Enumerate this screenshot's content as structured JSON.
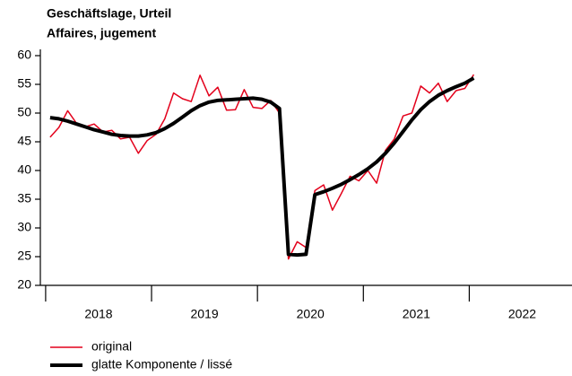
{
  "chart_data": {
    "type": "line",
    "title": "Geschäftslage, Urteil",
    "subtitle": "Affaires, jugement",
    "x": [
      2018.042,
      2018.125,
      2018.208,
      2018.292,
      2018.375,
      2018.458,
      2018.542,
      2018.625,
      2018.708,
      2018.792,
      2018.875,
      2018.958,
      2019.042,
      2019.125,
      2019.208,
      2019.292,
      2019.375,
      2019.458,
      2019.542,
      2019.625,
      2019.708,
      2019.792,
      2019.875,
      2019.958,
      2020.042,
      2020.125,
      2020.208,
      2020.292,
      2020.375,
      2020.458,
      2020.542,
      2020.625,
      2020.708,
      2020.792,
      2020.875,
      2020.958,
      2021.042,
      2021.125,
      2021.208,
      2021.292,
      2021.375,
      2021.458,
      2021.542,
      2021.625,
      2021.708,
      2021.792,
      2021.875,
      2021.958,
      2022.042
    ],
    "series": [
      {
        "name": "original",
        "color": "#e3001b",
        "width": 1.5,
        "values": [
          45.8,
          47.5,
          50.4,
          48.2,
          47.6,
          48.1,
          46.7,
          47.0,
          45.5,
          45.8,
          43.0,
          45.2,
          46.3,
          49.0,
          53.5,
          52.5,
          52.0,
          56.6,
          53.0,
          54.5,
          50.5,
          50.6,
          54.1,
          51.0,
          50.8,
          52.2,
          50.0,
          24.6,
          27.6,
          26.6,
          36.5,
          37.5,
          33.1,
          36.0,
          39.0,
          38.2,
          40.0,
          37.8,
          43.5,
          45.5,
          49.5,
          50.0,
          54.7,
          53.5,
          55.2,
          52.0,
          53.9,
          54.3,
          56.7
        ]
      },
      {
        "name": "glatte Komponente / lissé",
        "color": "#000000",
        "width": 4,
        "values": [
          49.2,
          49.0,
          48.6,
          48.1,
          47.6,
          47.1,
          46.7,
          46.3,
          46.1,
          46.0,
          46.0,
          46.2,
          46.6,
          47.3,
          48.2,
          49.3,
          50.4,
          51.3,
          51.9,
          52.2,
          52.3,
          52.4,
          52.5,
          52.6,
          52.4,
          51.9,
          50.8,
          25.4,
          25.3,
          25.4,
          35.8,
          36.3,
          36.9,
          37.6,
          38.4,
          39.3,
          40.3,
          41.5,
          43.0,
          44.8,
          46.8,
          48.8,
          50.6,
          52.0,
          53.1,
          53.9,
          54.6,
          55.2,
          56.1
        ]
      }
    ],
    "xlim": [
      2017.95,
      2022.97
    ],
    "xticks": [
      2018,
      2019,
      2020,
      2021,
      2022
    ],
    "year_labels": [
      {
        "value": 2018.5,
        "label": "2018"
      },
      {
        "value": 2019.5,
        "label": "2019"
      },
      {
        "value": 2020.5,
        "label": "2020"
      },
      {
        "value": 2021.5,
        "label": "2021"
      },
      {
        "value": 2022.5,
        "label": "2022"
      }
    ],
    "ylim": [
      20,
      60
    ],
    "yticks": [
      20,
      25,
      30,
      35,
      40,
      45,
      50,
      55,
      60
    ],
    "grid": false,
    "legend": "bottom-left"
  }
}
